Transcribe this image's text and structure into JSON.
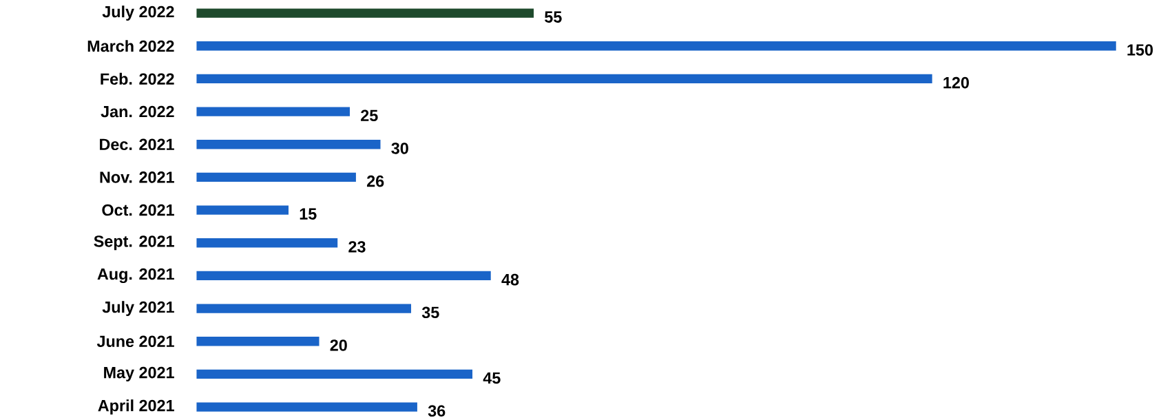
{
  "chart_data": {
    "type": "bar",
    "orientation": "horizontal",
    "categories": [
      "July 2022",
      "March 2022",
      "Feb. 2022",
      "Jan. 2022",
      "Dec. 2021",
      "Nov. 2021",
      "Oct. 2021",
      "Sept. 2021",
      "Aug. 2021",
      "July 2021",
      "June 2021",
      "May 2021",
      "April 2021"
    ],
    "values": [
      55,
      150,
      120,
      25,
      30,
      26,
      15,
      23,
      48,
      35,
      20,
      45,
      36
    ],
    "colors": [
      "#1e4a2c",
      "#1a64c8",
      "#1a64c8",
      "#1a64c8",
      "#1a64c8",
      "#1a64c8",
      "#1a64c8",
      "#1a64c8",
      "#1a64c8",
      "#1a64c8",
      "#1a64c8",
      "#1a64c8",
      "#1a64c8"
    ],
    "data_labels": true
  }
}
